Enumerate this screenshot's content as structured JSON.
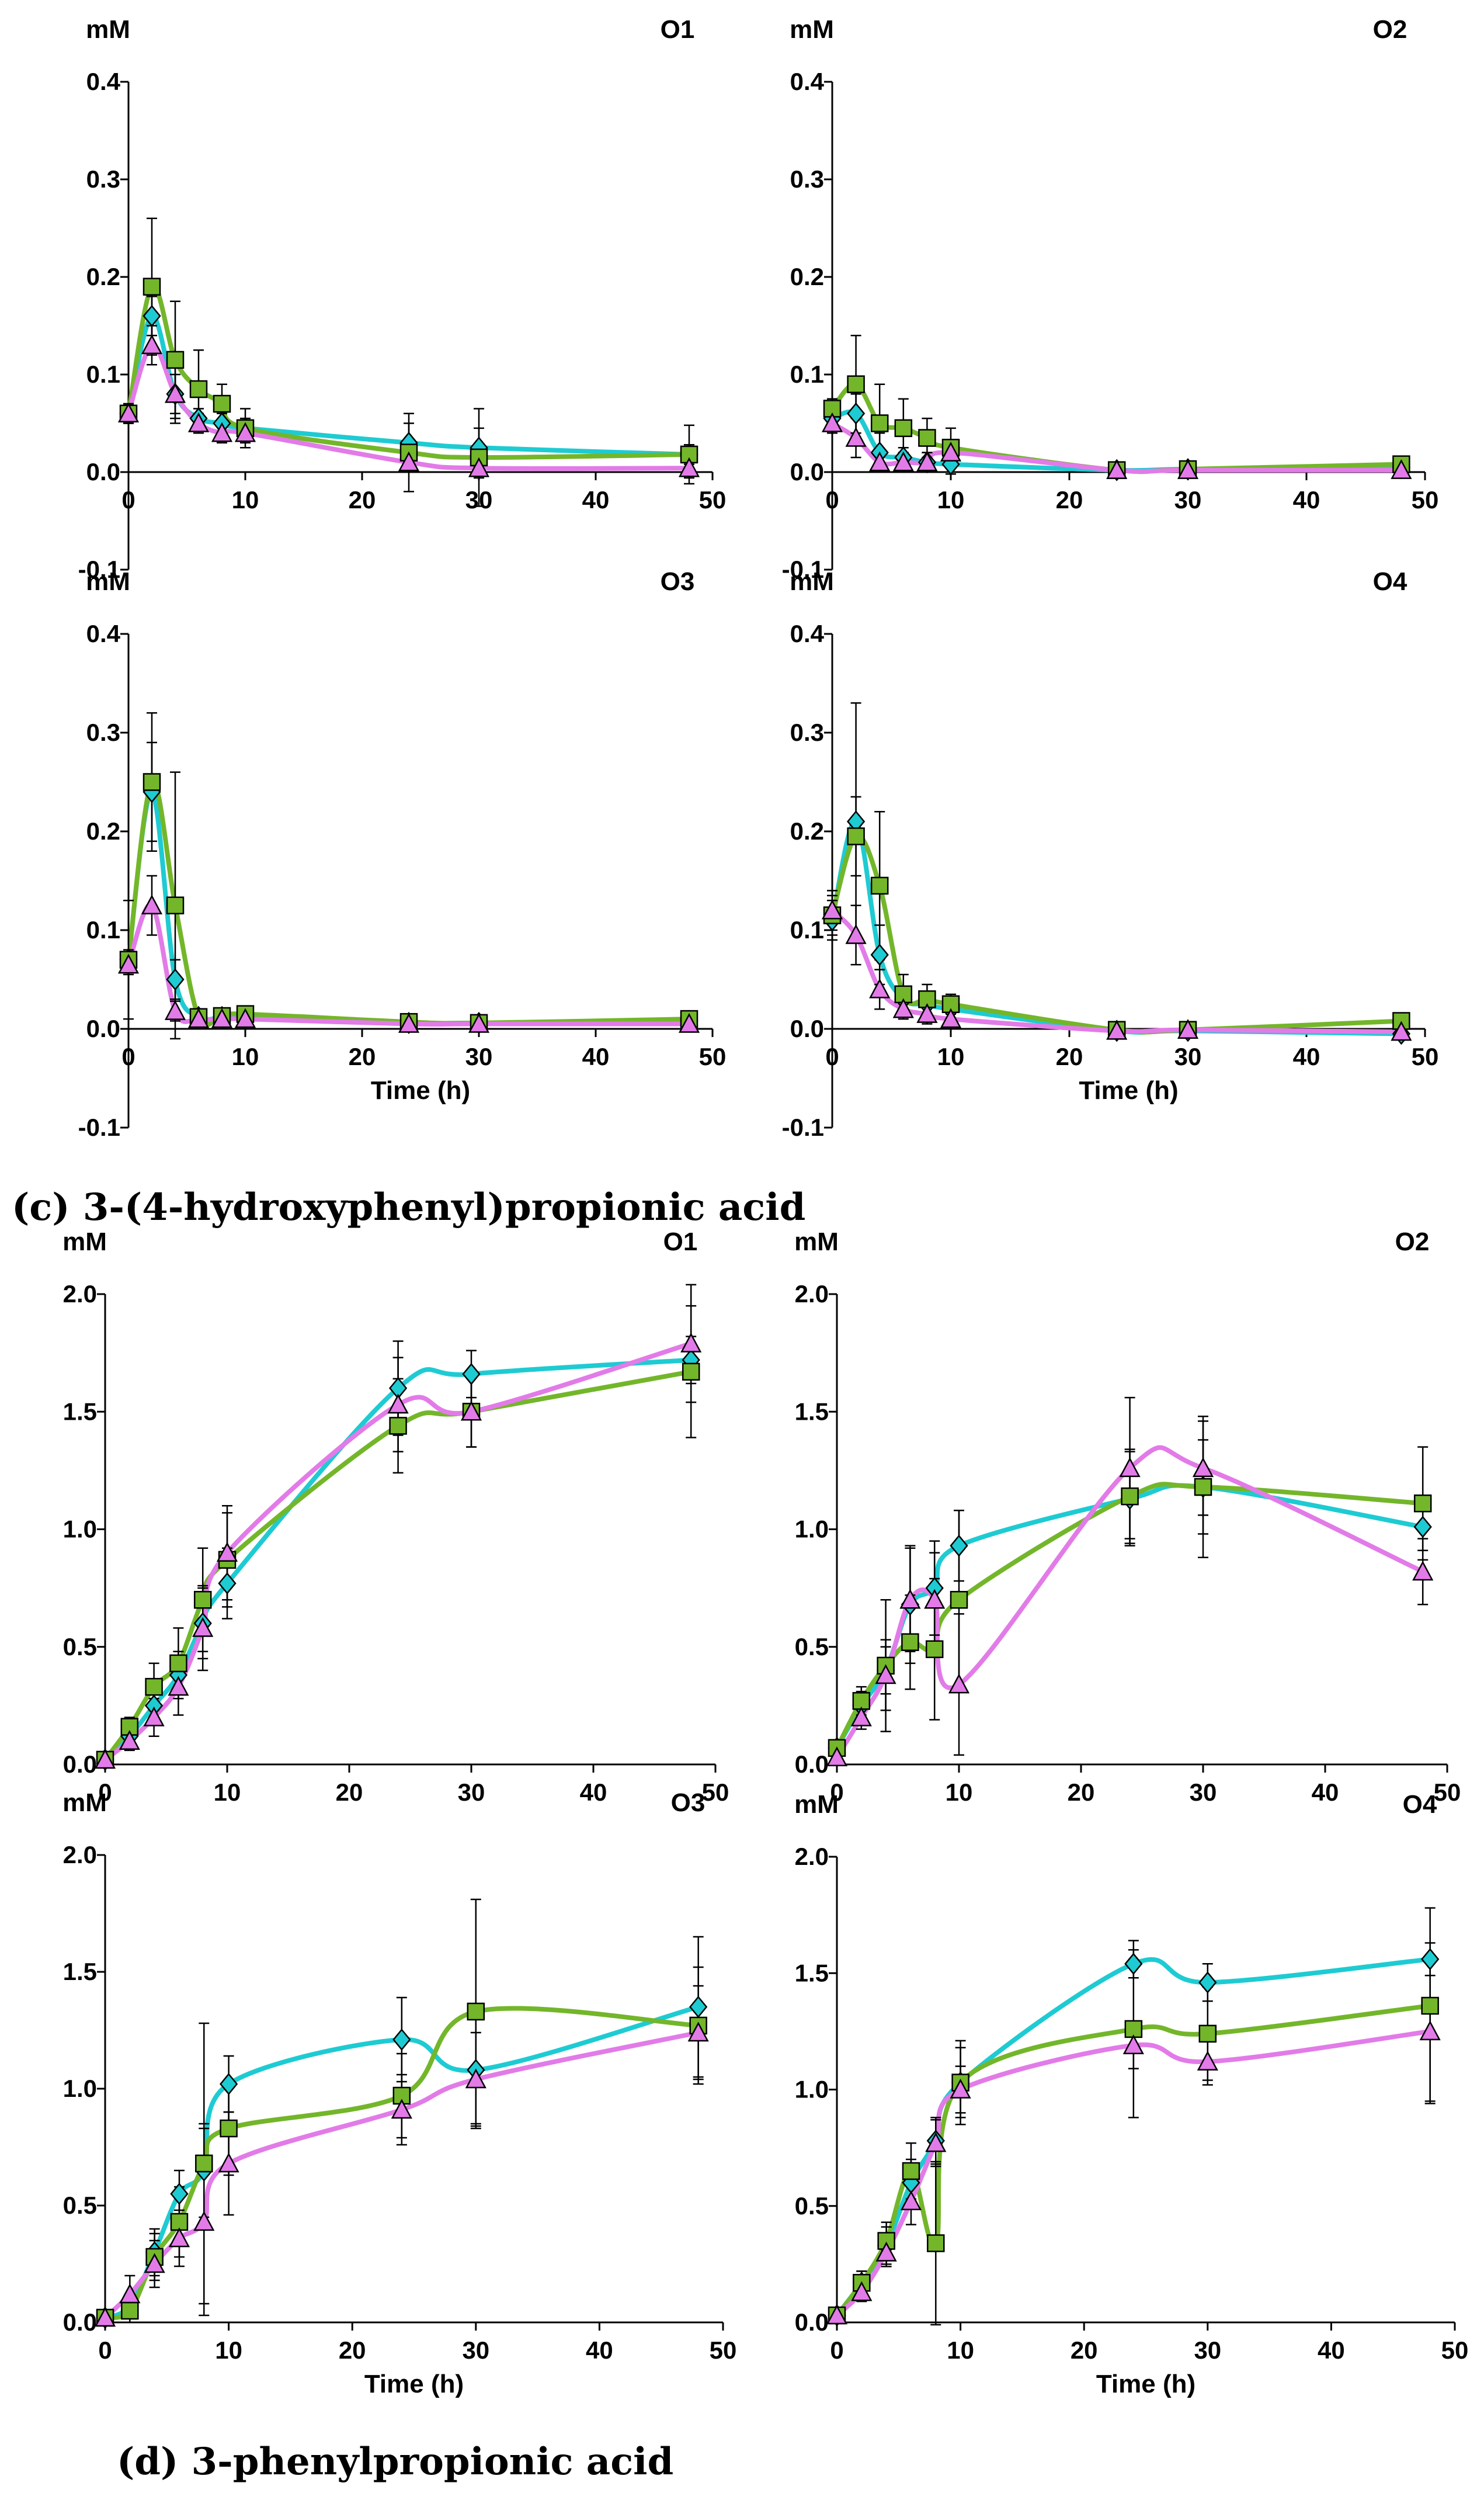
{
  "captions": {
    "c": "(c) 3-(4-hydroxyphenyl)propionic acid",
    "d": "(d) 3-phenylpropionic acid"
  },
  "colors": {
    "cyan": "#1ECBD2",
    "green": "#73B62A",
    "magenta": "#E27BE8",
    "axis": "#000000"
  },
  "chart_data": [
    {
      "type": "line",
      "title": "O1",
      "ylabel": "mM",
      "xlabel": "",
      "x": [
        0,
        2,
        4,
        6,
        8,
        10,
        24,
        30,
        48
      ],
      "xlim": [
        0,
        50
      ],
      "ylim": [
        -0.1,
        0.4
      ],
      "xticks": [
        "0",
        "10",
        "20",
        "30",
        "40",
        "50"
      ],
      "yticks": [
        "-0.1",
        "0.0",
        "0.1",
        "0.2",
        "0.3",
        "0.4"
      ],
      "series": [
        {
          "name": "cyan",
          "marker": "diamond",
          "values": [
            0.06,
            0.16,
            0.08,
            0.055,
            0.05,
            0.045,
            0.03,
            0.025,
            0.018
          ],
          "errors": [
            0.01,
            0.02,
            0.02,
            0.01,
            0.01,
            0.01,
            0.02,
            0.02,
            0.01
          ]
        },
        {
          "name": "green",
          "marker": "square",
          "values": [
            0.06,
            0.19,
            0.115,
            0.085,
            0.07,
            0.045,
            0.02,
            0.015,
            0.018
          ],
          "errors": [
            0.01,
            0.07,
            0.06,
            0.04,
            0.02,
            0.02,
            0.04,
            0.05,
            0.03
          ]
        },
        {
          "name": "magenta",
          "marker": "triangle",
          "values": [
            0.06,
            0.13,
            0.08,
            0.05,
            0.04,
            0.04,
            0.01,
            0.004,
            0.004
          ],
          "errors": [
            0.01,
            0.02,
            0.03,
            0.01,
            0.01,
            0.01,
            0.01,
            0.01,
            0.01
          ]
        }
      ]
    },
    {
      "type": "line",
      "title": "O2",
      "ylabel": "mM",
      "xlabel": "",
      "x": [
        0,
        2,
        4,
        6,
        8,
        10,
        24,
        30,
        48
      ],
      "xlim": [
        0,
        50
      ],
      "ylim": [
        -0.1,
        0.4
      ],
      "xticks": [
        "0",
        "10",
        "20",
        "30",
        "40",
        "50"
      ],
      "yticks": [
        "-0.1",
        "0.0",
        "0.1",
        "0.2",
        "0.3",
        "0.4"
      ],
      "series": [
        {
          "name": "cyan",
          "marker": "diamond",
          "values": [
            0.055,
            0.06,
            0.02,
            0.015,
            0.01,
            0.008,
            0.002,
            0.003,
            0.005
          ],
          "errors": [
            0.01,
            0.02,
            0.02,
            0.01,
            0.01,
            0.01,
            0.005,
            0.005,
            0.005
          ]
        },
        {
          "name": "green",
          "marker": "square",
          "values": [
            0.065,
            0.09,
            0.05,
            0.045,
            0.035,
            0.025,
            0.002,
            0.003,
            0.008
          ],
          "errors": [
            0.01,
            0.05,
            0.04,
            0.03,
            0.02,
            0.02,
            0.005,
            0.005,
            0.005
          ]
        },
        {
          "name": "magenta",
          "marker": "triangle",
          "values": [
            0.05,
            0.035,
            0.01,
            0.01,
            0.01,
            0.02,
            0.002,
            0.002,
            0.002
          ],
          "errors": [
            0.01,
            0.02,
            0.01,
            0.01,
            0.01,
            0.01,
            0.005,
            0.005,
            0.005
          ]
        }
      ]
    },
    {
      "type": "line",
      "title": "O3",
      "ylabel": "mM",
      "xlabel": "Time (h)",
      "x": [
        0,
        2,
        4,
        6,
        8,
        10,
        24,
        30,
        48
      ],
      "xlim": [
        0,
        50
      ],
      "ylim": [
        -0.1,
        0.4
      ],
      "xticks": [
        "0",
        "10",
        "20",
        "30",
        "40",
        "50"
      ],
      "yticks": [
        "-0.1",
        "0.0",
        "0.1",
        "0.2",
        "0.3",
        "0.4"
      ],
      "series": [
        {
          "name": "cyan",
          "marker": "diamond",
          "values": [
            0.07,
            0.24,
            0.05,
            0.012,
            0.012,
            0.012,
            0.006,
            0.006,
            0.008
          ],
          "errors": [
            0.01,
            0.05,
            0.02,
            0.005,
            0.005,
            0.005,
            0.005,
            0.005,
            0.005
          ]
        },
        {
          "name": "green",
          "marker": "square",
          "values": [
            0.07,
            0.25,
            0.125,
            0.012,
            0.013,
            0.015,
            0.007,
            0.006,
            0.01
          ],
          "errors": [
            0.06,
            0.07,
            0.135,
            0.005,
            0.005,
            0.005,
            0.005,
            0.005,
            0.005
          ]
        },
        {
          "name": "magenta",
          "marker": "triangle",
          "values": [
            0.065,
            0.125,
            0.018,
            0.01,
            0.01,
            0.01,
            0.005,
            0.005,
            0.005
          ],
          "errors": [
            0.01,
            0.03,
            0.01,
            0.005,
            0.005,
            0.005,
            0.005,
            0.005,
            0.005
          ]
        }
      ]
    },
    {
      "type": "line",
      "title": "O4",
      "ylabel": "mM",
      "xlabel": "Time (h)",
      "x": [
        0,
        2,
        4,
        6,
        8,
        10,
        24,
        30,
        48
      ],
      "xlim": [
        0,
        50
      ],
      "ylim": [
        -0.1,
        0.4
      ],
      "xticks": [
        "0",
        "10",
        "20",
        "30",
        "40",
        "50"
      ],
      "yticks": [
        "-0.1",
        "0.0",
        "0.1",
        "0.2",
        "0.3",
        "0.4"
      ],
      "series": [
        {
          "name": "cyan",
          "marker": "diamond",
          "values": [
            0.11,
            0.21,
            0.075,
            0.03,
            0.025,
            0.02,
            -0.002,
            -0.002,
            -0.005
          ],
          "errors": [
            0.02,
            0.12,
            0.03,
            0.01,
            0.01,
            0.01,
            0.005,
            0.005,
            0.005
          ]
        },
        {
          "name": "green",
          "marker": "square",
          "values": [
            0.115,
            0.195,
            0.145,
            0.035,
            0.03,
            0.025,
            -0.001,
            -0.001,
            0.008
          ],
          "errors": [
            0.02,
            0.04,
            0.075,
            0.02,
            0.015,
            0.01,
            0.005,
            0.005,
            0.005
          ]
        },
        {
          "name": "magenta",
          "marker": "triangle",
          "values": [
            0.12,
            0.095,
            0.04,
            0.02,
            0.015,
            0.01,
            -0.002,
            -0.001,
            -0.003
          ],
          "errors": [
            0.02,
            0.03,
            0.02,
            0.01,
            0.01,
            0.01,
            0.005,
            0.005,
            0.005
          ]
        }
      ]
    },
    {
      "type": "line",
      "title": "O1",
      "ylabel": "mM",
      "xlabel": "",
      "x": [
        0,
        2,
        4,
        6,
        8,
        10,
        24,
        30,
        48
      ],
      "xlim": [
        0,
        50
      ],
      "ylim": [
        0,
        2
      ],
      "xticks": [
        "0",
        "10",
        "20",
        "30",
        "40",
        "50"
      ],
      "yticks": [
        "0.0",
        "0.5",
        "1.0",
        "1.5",
        "2.0"
      ],
      "series": [
        {
          "name": "cyan",
          "marker": "diamond",
          "values": [
            0.02,
            0.12,
            0.25,
            0.38,
            0.6,
            0.77,
            1.6,
            1.66,
            1.72
          ],
          "errors": [
            0.02,
            0.04,
            0.06,
            0.1,
            0.15,
            0.15,
            0.2,
            0.1,
            0.1
          ]
        },
        {
          "name": "green",
          "marker": "square",
          "values": [
            0.02,
            0.16,
            0.33,
            0.43,
            0.7,
            0.87,
            1.44,
            1.5,
            1.67
          ],
          "errors": [
            0.02,
            0.04,
            0.1,
            0.15,
            0.22,
            0.2,
            0.2,
            0.15,
            0.28
          ]
        },
        {
          "name": "magenta",
          "marker": "triangle",
          "values": [
            0.02,
            0.1,
            0.2,
            0.33,
            0.58,
            0.9,
            1.53,
            1.5,
            1.79
          ],
          "errors": [
            0.02,
            0.04,
            0.08,
            0.12,
            0.18,
            0.2,
            0.2,
            0.15,
            0.25
          ]
        }
      ]
    },
    {
      "type": "line",
      "title": "O2",
      "ylabel": "mM",
      "xlabel": "",
      "x": [
        0,
        2,
        4,
        6,
        8,
        10,
        24,
        30,
        48
      ],
      "xlim": [
        0,
        50
      ],
      "ylim": [
        0,
        2
      ],
      "xticks": [
        "0",
        "10",
        "20",
        "30",
        "40",
        "50"
      ],
      "yticks": [
        "0.0",
        "0.5",
        "1.0",
        "1.5",
        "2.0"
      ],
      "series": [
        {
          "name": "cyan",
          "marker": "diamond",
          "values": [
            0.07,
            0.25,
            0.4,
            0.68,
            0.75,
            0.93,
            1.13,
            1.18,
            1.01
          ],
          "errors": [
            0.03,
            0.06,
            0.1,
            0.25,
            0.2,
            0.15,
            0.2,
            0.2,
            0.1
          ]
        },
        {
          "name": "green",
          "marker": "square",
          "values": [
            0.07,
            0.27,
            0.42,
            0.52,
            0.49,
            0.7,
            1.14,
            1.18,
            1.11
          ],
          "errors": [
            0.03,
            0.06,
            0.28,
            0.2,
            0.3,
            0.38,
            0.2,
            0.3,
            0.24
          ]
        },
        {
          "name": "magenta",
          "marker": "triangle",
          "values": [
            0.03,
            0.2,
            0.38,
            0.7,
            0.7,
            0.34,
            1.26,
            1.26,
            0.82
          ],
          "errors": [
            0.03,
            0.05,
            0.15,
            0.22,
            0.2,
            0.3,
            0.3,
            0.2,
            0.14
          ]
        }
      ]
    },
    {
      "type": "line",
      "title": "O3",
      "ylabel": "mM",
      "xlabel": "Time (h)",
      "x": [
        0,
        2,
        4,
        6,
        8,
        10,
        24,
        30,
        48
      ],
      "xlim": [
        0,
        50
      ],
      "ylim": [
        0,
        2
      ],
      "xticks": [
        "0",
        "10",
        "20",
        "30",
        "40",
        "50"
      ],
      "yticks": [
        "0.0",
        "0.5",
        "1.0",
        "1.5",
        "2.0"
      ],
      "series": [
        {
          "name": "cyan",
          "marker": "diamond",
          "values": [
            0.02,
            0.07,
            0.3,
            0.55,
            0.65,
            1.02,
            1.21,
            1.08,
            1.35
          ],
          "errors": [
            0.02,
            0.05,
            0.1,
            0.1,
            0.2,
            0.12,
            0.18,
            0.25,
            0.3
          ]
        },
        {
          "name": "green",
          "marker": "square",
          "values": [
            0.02,
            0.05,
            0.28,
            0.43,
            0.68,
            0.83,
            0.97,
            1.33,
            1.27
          ],
          "errors": [
            0.02,
            0.05,
            0.1,
            0.15,
            0.6,
            0.2,
            0.18,
            0.48,
            0.25
          ]
        },
        {
          "name": "magenta",
          "marker": "triangle",
          "values": [
            0.02,
            0.12,
            0.25,
            0.36,
            0.43,
            0.68,
            0.91,
            1.04,
            1.24
          ],
          "errors": [
            0.02,
            0.08,
            0.1,
            0.12,
            0.4,
            0.22,
            0.15,
            0.2,
            0.2
          ]
        }
      ]
    },
    {
      "type": "line",
      "title": "O4",
      "ylabel": "mM",
      "xlabel": "Time (h)",
      "x": [
        0,
        2,
        4,
        6,
        8,
        10,
        24,
        30,
        48
      ],
      "xlim": [
        0,
        50
      ],
      "ylim": [
        0,
        2
      ],
      "xticks": [
        "0",
        "10",
        "20",
        "30",
        "40",
        "50"
      ],
      "yticks": [
        "0.0",
        "0.5",
        "1.0",
        "1.5",
        "2.0"
      ],
      "series": [
        {
          "name": "cyan",
          "marker": "diamond",
          "values": [
            0.03,
            0.17,
            0.33,
            0.6,
            0.78,
            1.03,
            1.54,
            1.46,
            1.56
          ],
          "errors": [
            0.02,
            0.05,
            0.08,
            0.1,
            0.1,
            0.15,
            0.06,
            0.08,
            0.07
          ]
        },
        {
          "name": "green",
          "marker": "square",
          "values": [
            0.03,
            0.17,
            0.35,
            0.65,
            0.34,
            1.03,
            1.26,
            1.24,
            1.36
          ],
          "errors": [
            0.02,
            0.05,
            0.08,
            0.12,
            0.35,
            0.18,
            0.38,
            0.2,
            0.42
          ]
        },
        {
          "name": "magenta",
          "marker": "triangle",
          "values": [
            0.03,
            0.13,
            0.3,
            0.52,
            0.77,
            1.0,
            1.19,
            1.12,
            1.25
          ],
          "errors": [
            0.02,
            0.04,
            0.06,
            0.1,
            0.1,
            0.1,
            0.1,
            0.1,
            0.3
          ]
        }
      ]
    }
  ]
}
